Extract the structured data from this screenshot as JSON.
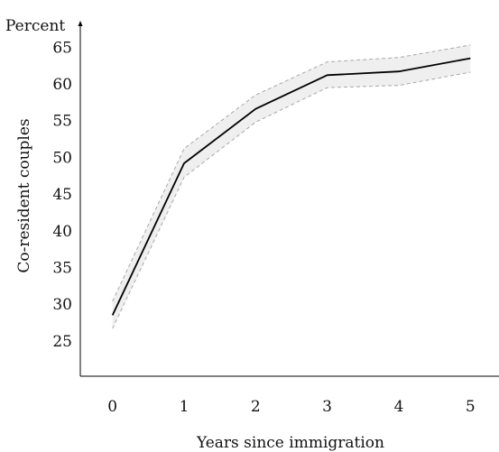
{
  "chart_data": {
    "type": "line",
    "x": [
      0,
      1,
      2,
      3,
      4,
      5
    ],
    "series": [
      {
        "values": [
          28.5,
          49.2,
          56.6,
          61.2,
          61.7,
          63.5
        ],
        "lower": [
          26.7,
          47.3,
          54.8,
          59.5,
          59.8,
          61.6
        ],
        "upper": [
          30.4,
          51.2,
          58.5,
          63.0,
          63.6,
          65.3
        ],
        "color": "#000000",
        "band_color": "#efefef",
        "band_edge_color": "#a8a8a8"
      }
    ],
    "y_unit": "Percent",
    "xlabel": "Years since immigration",
    "ylabel": "Co-resident couples",
    "xlim": [
      -0.45,
      5.4
    ],
    "ylim": [
      20.2,
      67.5
    ],
    "xticks": [
      "0",
      "1",
      "2",
      "3",
      "4",
      "5"
    ],
    "yticks": [
      "25",
      "30",
      "35",
      "40",
      "45",
      "50",
      "55",
      "60",
      "65"
    ],
    "grid": false,
    "legend": "none"
  }
}
